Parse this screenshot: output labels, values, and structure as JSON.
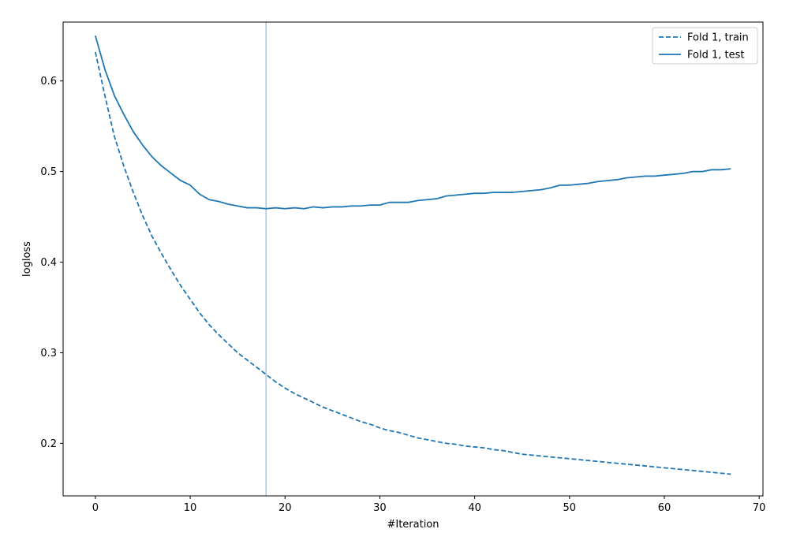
{
  "chart_data": {
    "type": "line",
    "title": "",
    "xlabel": "#Iteration",
    "ylabel": "logloss",
    "xlim": [
      -3.4,
      70.4
    ],
    "ylim": [
      0.142,
      0.665
    ],
    "xticks": [
      0,
      10,
      20,
      30,
      40,
      50,
      60,
      70
    ],
    "yticks": [
      0.2,
      0.3,
      0.4,
      0.5,
      0.6
    ],
    "grid": false,
    "legend_position": "top-right",
    "vline": {
      "x": 18,
      "color": "#a6c8e8"
    },
    "series": [
      {
        "name": "Fold 1, train",
        "style": "dashed",
        "color": "#1f77b4",
        "x": [
          0,
          1,
          2,
          3,
          4,
          5,
          6,
          7,
          8,
          9,
          10,
          11,
          12,
          13,
          14,
          15,
          16,
          17,
          18,
          19,
          20,
          21,
          22,
          23,
          24,
          25,
          26,
          27,
          28,
          29,
          30,
          31,
          32,
          33,
          34,
          35,
          36,
          37,
          38,
          39,
          40,
          41,
          42,
          43,
          44,
          45,
          46,
          47,
          48,
          49,
          50,
          51,
          52,
          53,
          54,
          55,
          56,
          57,
          58,
          59,
          60,
          61,
          62,
          63,
          64,
          65,
          66,
          67
        ],
        "y": [
          0.632,
          0.584,
          0.539,
          0.506,
          0.477,
          0.451,
          0.428,
          0.409,
          0.391,
          0.374,
          0.359,
          0.344,
          0.331,
          0.32,
          0.31,
          0.3,
          0.292,
          0.284,
          0.276,
          0.268,
          0.261,
          0.255,
          0.25,
          0.245,
          0.24,
          0.236,
          0.232,
          0.228,
          0.224,
          0.221,
          0.217,
          0.214,
          0.212,
          0.209,
          0.206,
          0.204,
          0.202,
          0.2,
          0.199,
          0.197,
          0.196,
          0.195,
          0.193,
          0.192,
          0.19,
          0.188,
          0.187,
          0.186,
          0.185,
          0.184,
          0.183,
          0.182,
          0.181,
          0.18,
          0.179,
          0.178,
          0.177,
          0.176,
          0.175,
          0.174,
          0.173,
          0.172,
          0.171,
          0.17,
          0.169,
          0.168,
          0.167,
          0.166
        ]
      },
      {
        "name": "Fold 1, test",
        "style": "solid",
        "color": "#1f77b4",
        "x": [
          0,
          1,
          2,
          3,
          4,
          5,
          6,
          7,
          8,
          9,
          10,
          11,
          12,
          13,
          14,
          15,
          16,
          17,
          18,
          19,
          20,
          21,
          22,
          23,
          24,
          25,
          26,
          27,
          28,
          29,
          30,
          31,
          32,
          33,
          34,
          35,
          36,
          37,
          38,
          39,
          40,
          41,
          42,
          43,
          44,
          45,
          46,
          47,
          48,
          49,
          50,
          51,
          52,
          53,
          54,
          55,
          56,
          57,
          58,
          59,
          60,
          61,
          62,
          63,
          64,
          65,
          66,
          67
        ],
        "y": [
          0.65,
          0.613,
          0.584,
          0.563,
          0.544,
          0.529,
          0.516,
          0.506,
          0.498,
          0.49,
          0.485,
          0.475,
          0.469,
          0.467,
          0.464,
          0.462,
          0.46,
          0.46,
          0.459,
          0.46,
          0.459,
          0.46,
          0.459,
          0.461,
          0.46,
          0.461,
          0.461,
          0.462,
          0.462,
          0.463,
          0.463,
          0.466,
          0.466,
          0.466,
          0.468,
          0.469,
          0.47,
          0.473,
          0.474,
          0.475,
          0.476,
          0.476,
          0.477,
          0.477,
          0.477,
          0.478,
          0.479,
          0.48,
          0.482,
          0.485,
          0.485,
          0.486,
          0.487,
          0.489,
          0.49,
          0.491,
          0.493,
          0.494,
          0.495,
          0.495,
          0.496,
          0.497,
          0.498,
          0.5,
          0.5,
          0.502,
          0.502,
          0.503
        ]
      }
    ]
  }
}
